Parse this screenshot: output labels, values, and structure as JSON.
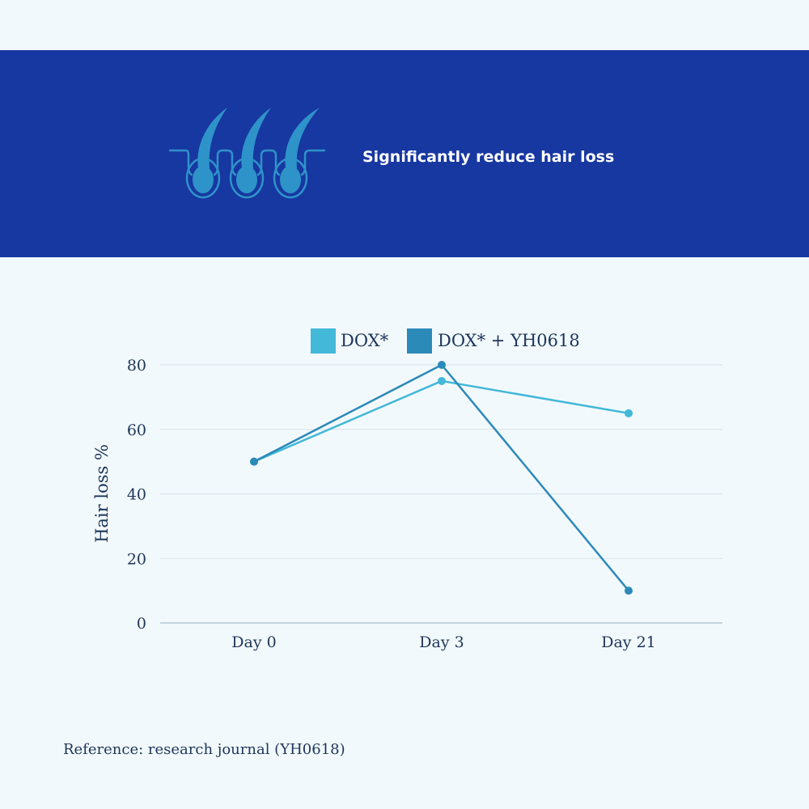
{
  "banner": {
    "title": "Significantly reduce hair loss",
    "icon": "hair-follicles-icon",
    "background_color": "#1737a1"
  },
  "chart_data": {
    "type": "line",
    "categories": [
      "Day 0",
      "Day 3",
      "Day 21"
    ],
    "series": [
      {
        "name": "DOX*",
        "values": [
          50,
          75,
          65
        ],
        "color": "#43b8d8"
      },
      {
        "name": "DOX* + YH0618",
        "values": [
          50,
          80,
          10
        ],
        "color": "#2c8ab8"
      }
    ],
    "ylabel": "Hair loss %",
    "xlabel": "",
    "ylim": [
      0,
      80
    ],
    "yticks": [
      0,
      20,
      40,
      60,
      80
    ],
    "grid": true,
    "legend_position": "top"
  },
  "footer": {
    "reference": "Reference: research journal (YH0618)"
  }
}
